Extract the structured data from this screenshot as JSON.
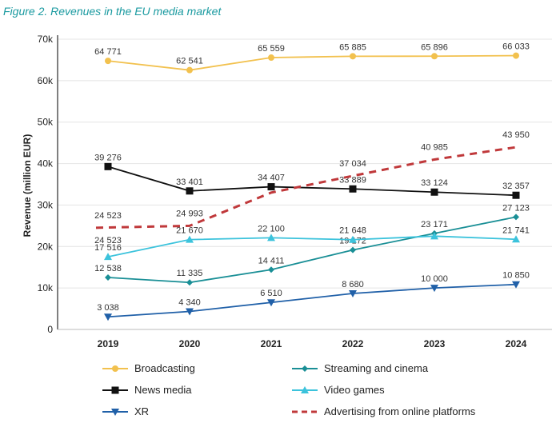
{
  "chart_data": {
    "type": "line",
    "title": "Figure 2. Revenues in the EU media market",
    "xlabel": "",
    "ylabel": "Revenue (million EUR)",
    "ylim": [
      0,
      70000
    ],
    "yticks": [
      "0",
      "10k",
      "20k",
      "30k",
      "40k",
      "50k",
      "60k",
      "70k"
    ],
    "categories": [
      "2019",
      "2020",
      "2021",
      "2022",
      "2023",
      "2024"
    ],
    "grid": true,
    "legend_position": "bottom",
    "series": [
      {
        "name": "Broadcasting",
        "color": "#f2c14e",
        "marker": "circle",
        "dash": false,
        "values": [
          64771,
          62541,
          65559,
          65885,
          65896,
          66033
        ],
        "labels": [
          "64 771",
          "62 541",
          "65 559",
          "65 885",
          "65 896",
          "66 033"
        ]
      },
      {
        "name": "Streaming and cinema",
        "color": "#1a8f96",
        "marker": "diamond",
        "dash": false,
        "values": [
          12538,
          11335,
          14411,
          19172,
          23171,
          27123
        ],
        "labels": [
          "12 538",
          "11 335",
          "14 411",
          "19 172",
          "23 171",
          "27 123"
        ]
      },
      {
        "name": "News media",
        "color": "#111111",
        "marker": "square",
        "dash": false,
        "values": [
          39276,
          33401,
          34407,
          33889,
          33124,
          32357
        ],
        "labels": [
          "39 276",
          "33 401",
          "34 407",
          "33 889",
          "33 124",
          "32 357"
        ]
      },
      {
        "name": "Video games",
        "color": "#3cc3dc",
        "marker": "triangle-up",
        "dash": false,
        "values": [
          17516,
          21670,
          22100,
          21648,
          22500,
          21741
        ],
        "labels": [
          "17 516",
          "21 670",
          "22 100",
          "21 648",
          "",
          "21 741"
        ]
      },
      {
        "name": "XR",
        "color": "#2060a8",
        "marker": "triangle-down",
        "dash": false,
        "values": [
          3038,
          4340,
          6510,
          8680,
          10000,
          10850
        ],
        "labels": [
          "3 038",
          "4 340",
          "6 510",
          "8 680",
          "10 000",
          "10 850"
        ]
      },
      {
        "name": "Advertising from online platforms",
        "color": "#c0393b",
        "marker": "none",
        "dash": true,
        "values": [
          24523,
          24993,
          33000,
          37034,
          40985,
          43950
        ],
        "labels": [
          "24 523",
          "24 993",
          "",
          "37 034",
          "40 985",
          "43 950"
        ]
      }
    ],
    "extra_labels": [
      "24 523"
    ]
  }
}
